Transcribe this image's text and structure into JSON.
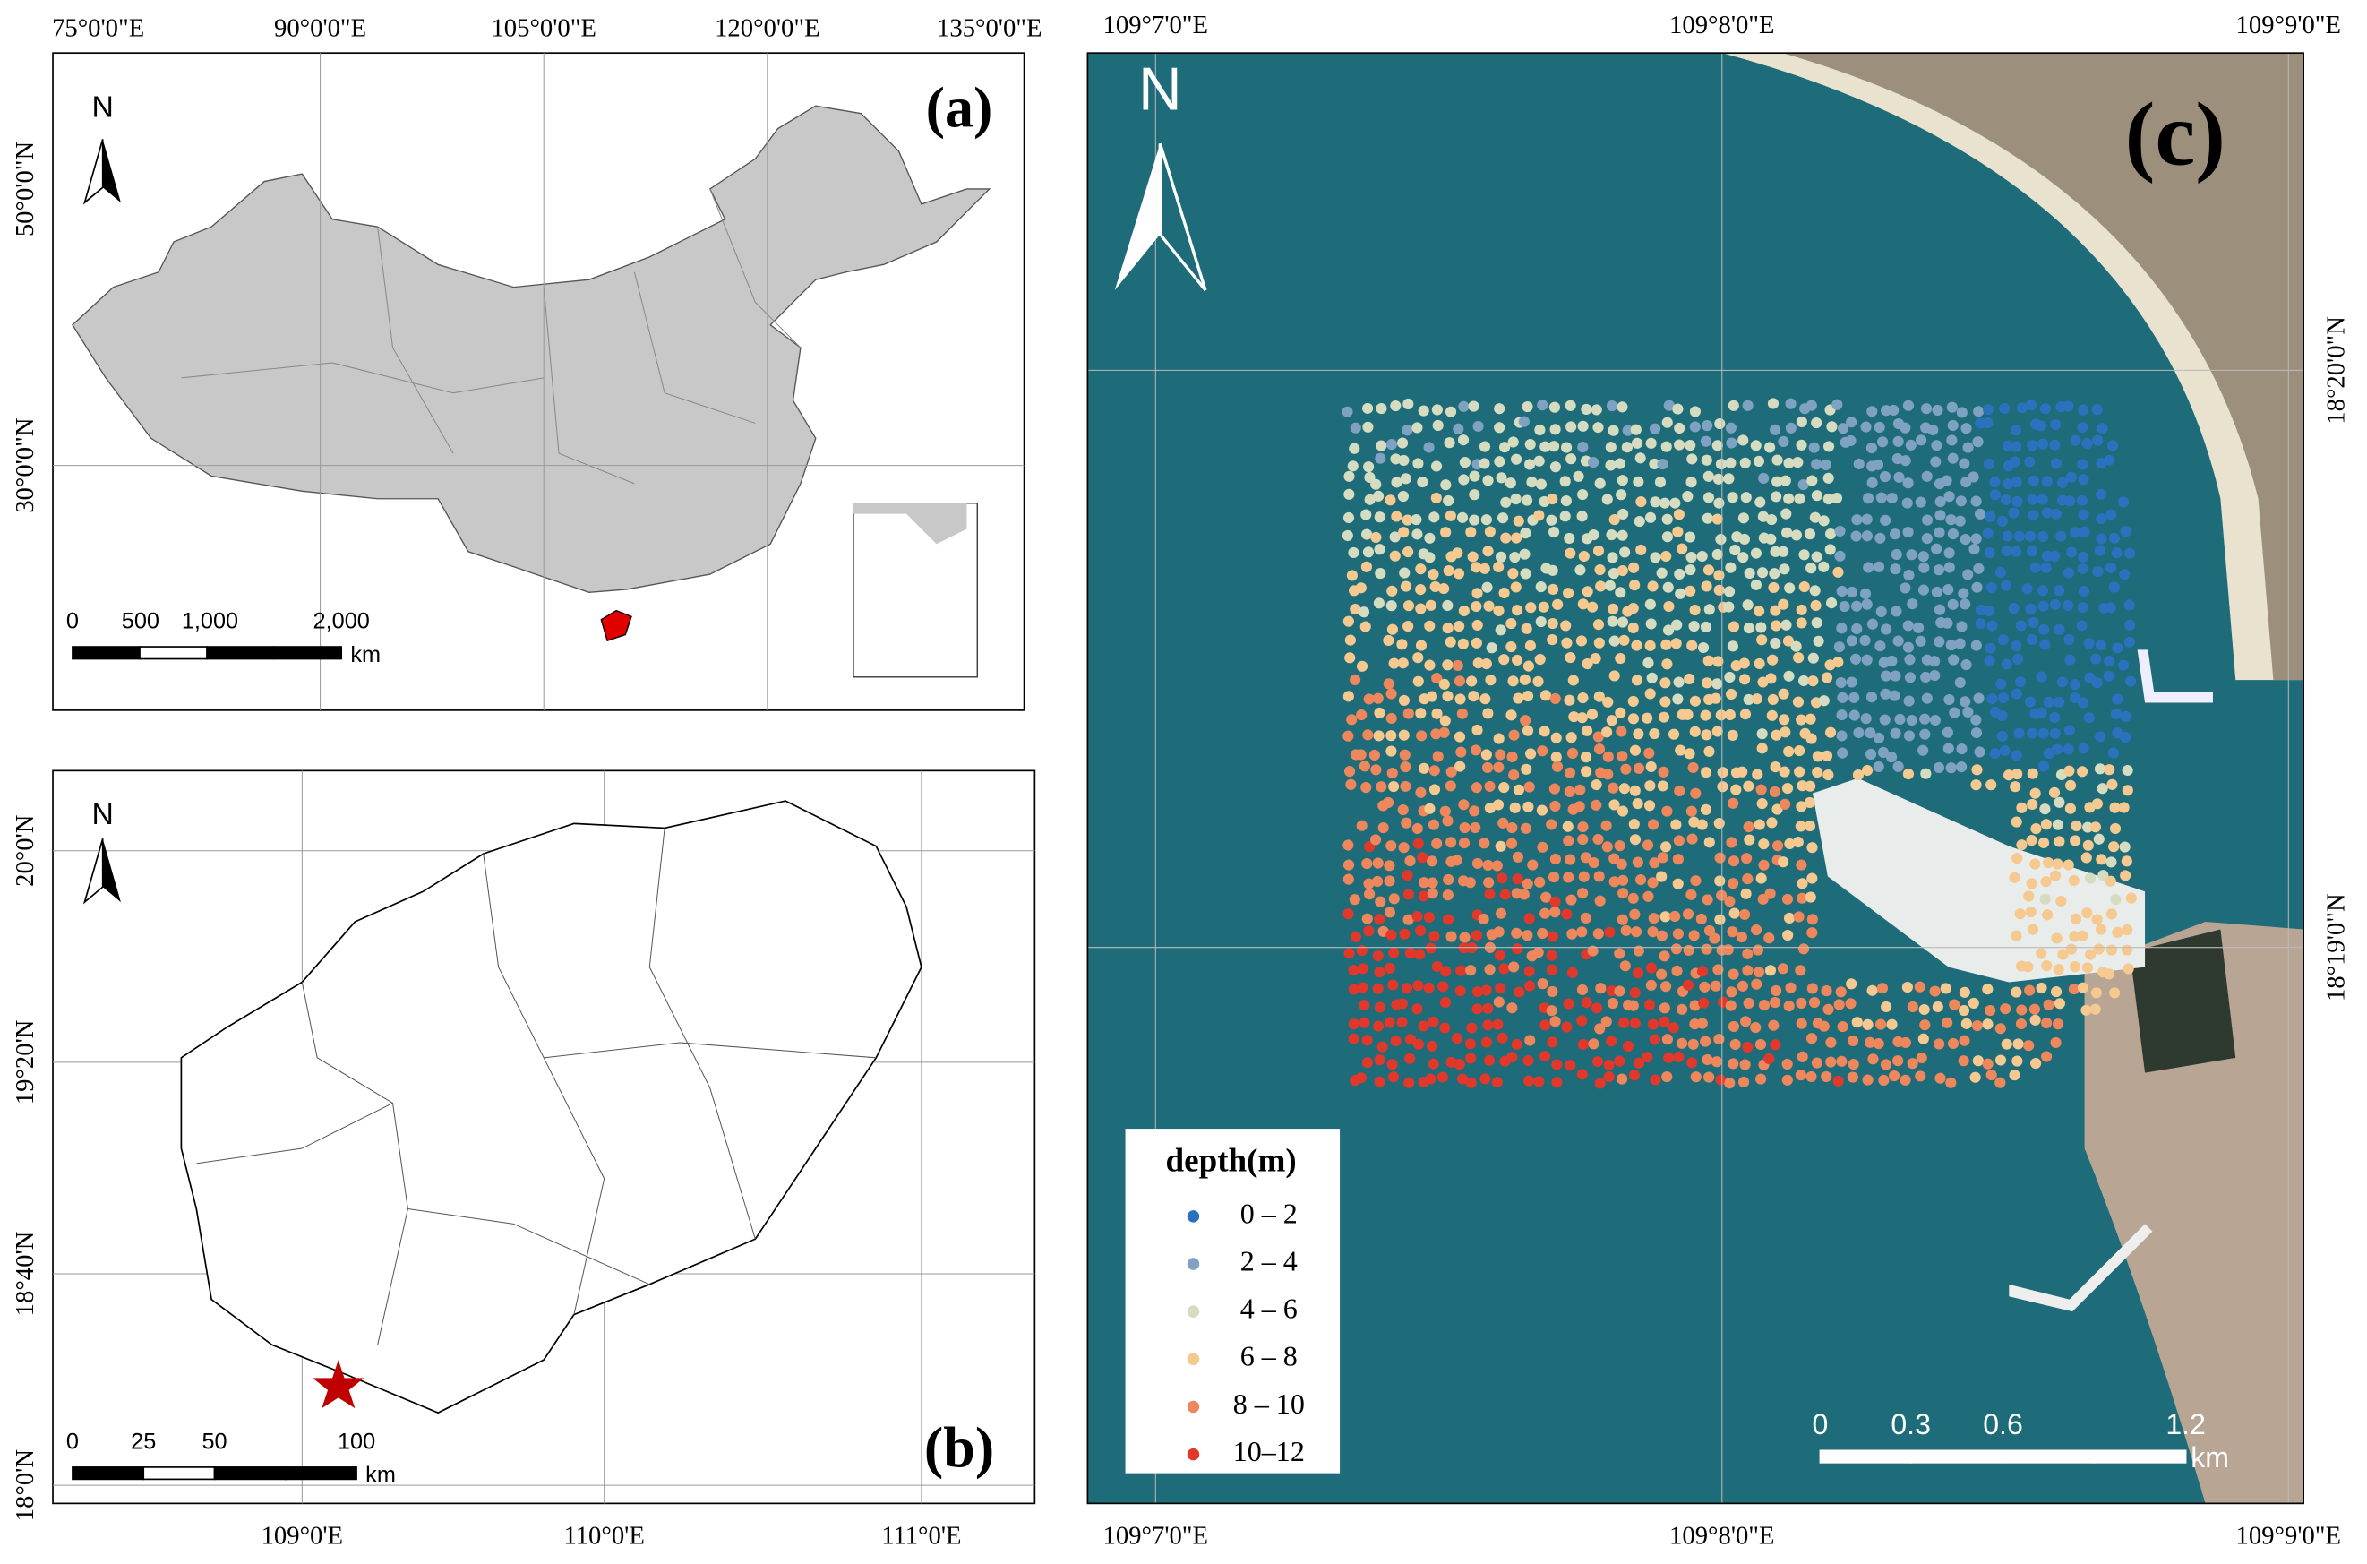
{
  "panels": [
    {
      "label": "(a)",
      "north": "N",
      "top_labels": [
        "75°0'0\"E",
        "90°0'0\"E",
        "105°0'0\"E",
        "120°0'0\"E",
        "135°0'0\"E"
      ],
      "left_labels": [
        "50°0'0\"N",
        "30°0'0\"N"
      ],
      "scale_labels": [
        "0",
        "500",
        "1,000",
        "2,000"
      ],
      "scale_unit": "km"
    },
    {
      "label": "(b)",
      "north": "N",
      "bottom_labels": [
        "109°0'E",
        "110°0'E",
        "111°0'E"
      ],
      "left_labels": [
        "20°0'N",
        "19°20'N",
        "18°40'N",
        "18°0'N"
      ],
      "scale_labels": [
        "0",
        "25",
        "50",
        "100"
      ],
      "scale_unit": "km"
    },
    {
      "label": "(c)",
      "north": "N",
      "top_labels": [
        "109°7'0\"E",
        "109°8'0\"E",
        "109°9'0\"E"
      ],
      "bottom_labels": [
        "109°7'0\"E",
        "109°8'0\"E",
        "109°9'0\"E"
      ],
      "right_labels": [
        "18°20'0\"N",
        "18°19'0\"N"
      ],
      "scale_labels": [
        "0",
        "0.3",
        "0.6",
        "1.2"
      ],
      "scale_unit": "km",
      "legend": {
        "title": "depth(m)",
        "items": [
          {
            "label": "0 – 2",
            "color": "#2a72bd"
          },
          {
            "label": "2 – 4",
            "color": "#80a2c2"
          },
          {
            "label": "4 – 6",
            "color": "#d6dcc0"
          },
          {
            "label": "6 – 8",
            "color": "#f5c98f"
          },
          {
            "label": "8 – 10",
            "color": "#ef875c"
          },
          {
            "label": "10–12",
            "color": "#e0382a"
          }
        ]
      }
    }
  ]
}
